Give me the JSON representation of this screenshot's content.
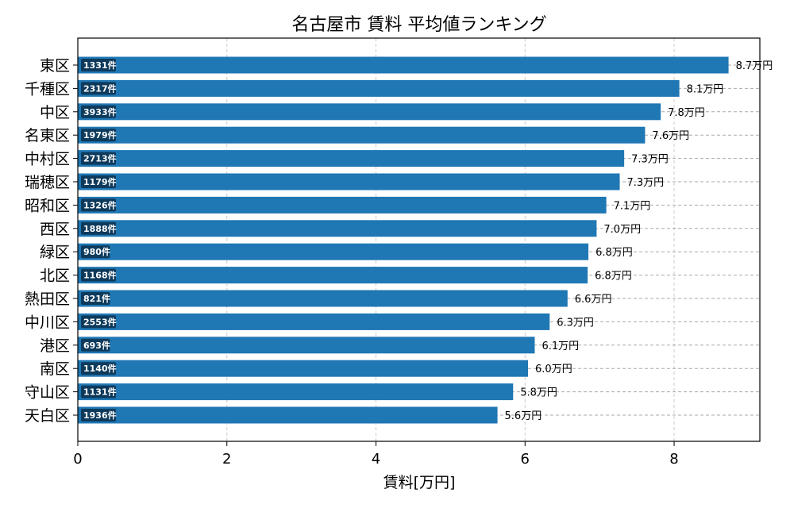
{
  "chart_data": {
    "type": "bar",
    "orientation": "horizontal",
    "title": "名古屋市 賃料 平均値ランキング",
    "xlabel": "賃料[万円]",
    "ylabel": "",
    "xlim": [
      0,
      9.15
    ],
    "xticks": [
      0,
      2,
      4,
      6,
      8
    ],
    "grid": true,
    "bar_color": "#1f77b4",
    "count_badge_color": "#0e3a5c",
    "value_suffix": "万円",
    "count_suffix": "件",
    "categories": [
      "東区",
      "千種区",
      "中区",
      "名東区",
      "中村区",
      "瑞穂区",
      "昭和区",
      "西区",
      "緑区",
      "北区",
      "熱田区",
      "中川区",
      "港区",
      "南区",
      "守山区",
      "天白区"
    ],
    "values": [
      8.7,
      8.1,
      7.8,
      7.6,
      7.3,
      7.3,
      7.1,
      7.0,
      6.8,
      6.8,
      6.6,
      6.3,
      6.1,
      6.0,
      5.8,
      5.6
    ],
    "bar_values": [
      8.73,
      8.07,
      7.82,
      7.61,
      7.33,
      7.27,
      7.09,
      6.96,
      6.85,
      6.84,
      6.57,
      6.33,
      6.13,
      6.04,
      5.84,
      5.63
    ],
    "value_labels": [
      "8.7万円",
      "8.1万円",
      "7.8万円",
      "7.6万円",
      "7.3万円",
      "7.3万円",
      "7.1万円",
      "7.0万円",
      "6.8万円",
      "6.8万円",
      "6.6万円",
      "6.3万円",
      "6.1万円",
      "6.0万円",
      "5.8万円",
      "5.6万円"
    ],
    "counts": [
      1331,
      2317,
      3933,
      1979,
      2713,
      1179,
      1326,
      1888,
      980,
      1168,
      821,
      2553,
      693,
      1140,
      1131,
      1936
    ],
    "count_labels": [
      "1331件",
      "2317件",
      "3933件",
      "1979件",
      "2713件",
      "1179件",
      "1326件",
      "1888件",
      "980件",
      "1168件",
      "821件",
      "2553件",
      "693件",
      "1140件",
      "1131件",
      "1936件"
    ]
  }
}
